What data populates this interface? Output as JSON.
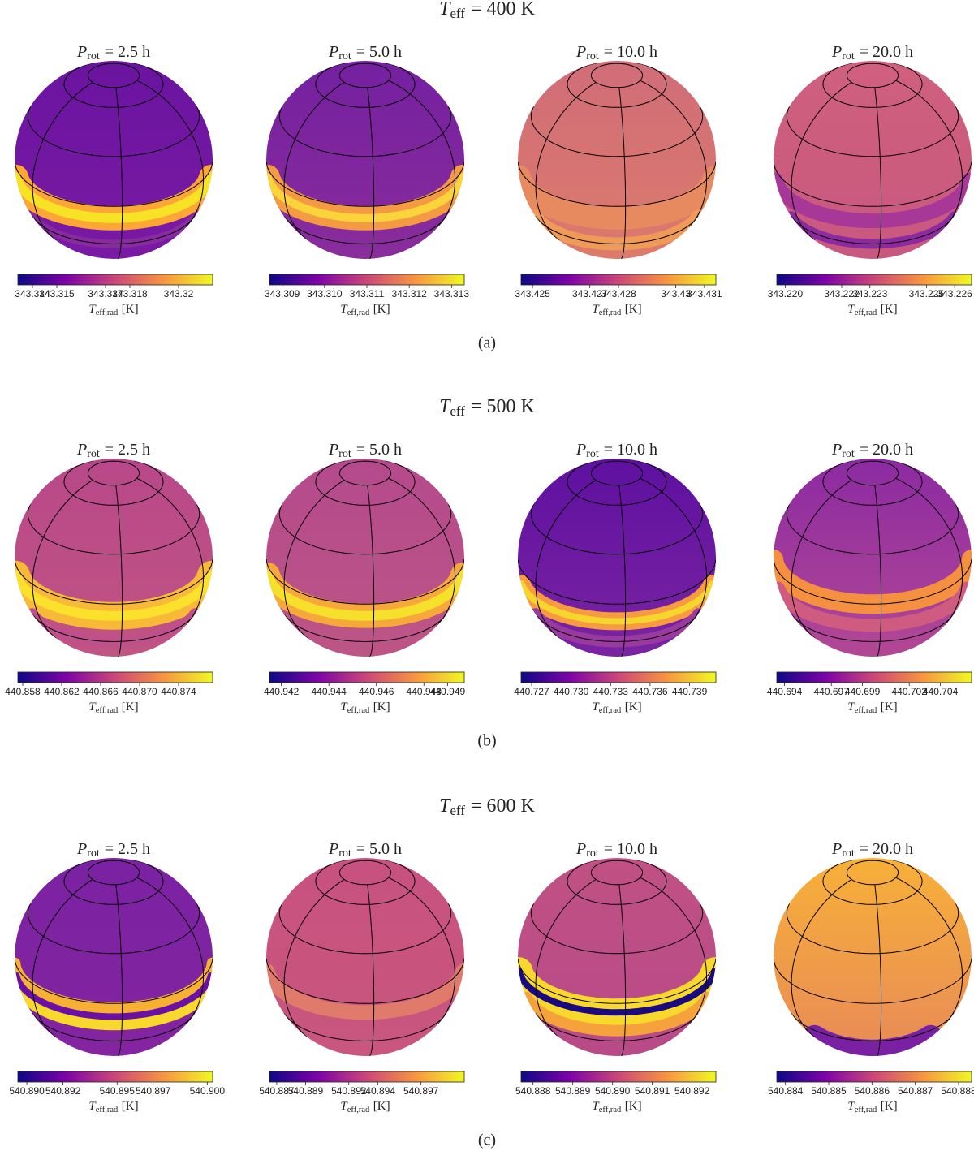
{
  "rows": [
    {
      "title": {
        "symbol": "T",
        "sub": "eff",
        "rest": "= 400 K"
      },
      "label": "(a)",
      "panels": [
        {
          "title": {
            "symbol": "P",
            "sub": "rot",
            "rest": "= 2.5 h"
          },
          "colorbar": {
            "lim": [
              343.3134,
              343.3214
            ],
            "ticks": [
              343.314,
              343.315,
              343.317,
              343.318,
              343.32
            ],
            "label": {
              "symbol": "T",
              "sub": "eff,rad",
              "rest": "[K]"
            }
          }
        },
        {
          "title": {
            "symbol": "P",
            "sub": "rot",
            "rest": "= 5.0 h"
          },
          "colorbar": {
            "lim": [
              343.3087,
              343.3133
            ],
            "ticks": [
              343.309,
              {
                "value": 343.31,
                "label": "343.310"
              },
              343.311,
              343.312,
              343.313
            ],
            "label": {
              "symbol": "T",
              "sub": "eff,rad",
              "rest": "[K]"
            }
          }
        },
        {
          "title": {
            "symbol": "P",
            "sub": "rot",
            "rest": "= 10.0 h"
          },
          "colorbar": {
            "lim": [
              343.4246,
              343.4314
            ],
            "ticks": [
              343.425,
              343.427,
              343.428,
              343.43,
              343.431
            ],
            "label": {
              "symbol": "T",
              "sub": "eff,rad",
              "rest": "[K]"
            }
          }
        },
        {
          "title": {
            "symbol": "P",
            "sub": "rot",
            "rest": "= 20.0 h"
          },
          "colorbar": {
            "lim": [
              343.2197,
              343.2266
            ],
            "ticks": [
              {
                "value": 343.22,
                "label": "343.220"
              },
              343.222,
              343.223,
              343.225,
              343.226
            ],
            "label": {
              "symbol": "T",
              "sub": "eff,rad",
              "rest": "[K]"
            }
          }
        }
      ]
    },
    {
      "title": {
        "symbol": "T",
        "sub": "eff",
        "rest": "= 500 K"
      },
      "label": "(b)",
      "panels": [
        {
          "title": {
            "symbol": "P",
            "sub": "rot",
            "rest": "= 2.5 h"
          },
          "colorbar": {
            "lim": [
              440.8575,
              440.8775
            ],
            "ticks": [
              440.858,
              440.862,
              440.866,
              {
                "value": 440.87,
                "label": "440.870"
              },
              440.874
            ],
            "label": {
              "symbol": "T",
              "sub": "eff,rad",
              "rest": "[K]"
            }
          }
        },
        {
          "title": {
            "symbol": "P",
            "sub": "rot",
            "rest": "= 5.0 h"
          },
          "colorbar": {
            "lim": [
              440.9415,
              440.9497
            ],
            "ticks": [
              440.942,
              440.944,
              440.946,
              440.948,
              440.949
            ],
            "label": {
              "symbol": "T",
              "sub": "eff,rad",
              "rest": "[K]"
            }
          }
        },
        {
          "title": {
            "symbol": "P",
            "sub": "rot",
            "rest": "= 10.0 h"
          },
          "colorbar": {
            "lim": [
              440.7262,
              440.741
            ],
            "ticks": [
              440.727,
              {
                "value": 440.73,
                "label": "440.730"
              },
              440.733,
              440.736,
              440.739
            ],
            "label": {
              "symbol": "T",
              "sub": "eff,rad",
              "rest": "[K]"
            }
          }
        },
        {
          "title": {
            "symbol": "P",
            "sub": "rot",
            "rest": "= 20.0 h"
          },
          "colorbar": {
            "lim": [
              440.6935,
              440.706
            ],
            "ticks": [
              440.694,
              440.697,
              440.699,
              440.702,
              440.704
            ],
            "label": {
              "symbol": "T",
              "sub": "eff,rad",
              "rest": "[K]"
            }
          }
        }
      ]
    },
    {
      "title": {
        "symbol": "T",
        "sub": "eff",
        "rest": "= 600 K"
      },
      "label": "(c)",
      "panels": [
        {
          "title": {
            "symbol": "P",
            "sub": "rot",
            "rest": "= 2.5 h"
          },
          "colorbar": {
            "lim": [
              540.8895,
              540.9003
            ],
            "ticks": [
              {
                "value": 540.89,
                "label": "540.890"
              },
              540.892,
              540.895,
              540.897,
              {
                "value": 540.9,
                "label": "540.900"
              }
            ],
            "label": {
              "symbol": "T",
              "sub": "eff,rad",
              "rest": "[K]"
            }
          }
        },
        {
          "title": {
            "symbol": "P",
            "sub": "rot",
            "rest": "= 5.0 h"
          },
          "colorbar": {
            "lim": [
              540.8865,
              540.9
            ],
            "ticks": [
              540.887,
              540.889,
              540.892,
              540.894,
              540.897
            ],
            "label": {
              "symbol": "T",
              "sub": "eff,rad",
              "rest": "[K]"
            }
          }
        },
        {
          "title": {
            "symbol": "P",
            "sub": "rot",
            "rest": "= 10.0 h"
          },
          "colorbar": {
            "lim": [
              540.8877,
              540.8926
            ],
            "ticks": [
              540.888,
              540.889,
              {
                "value": 540.89,
                "label": "540.890"
              },
              540.891,
              540.892
            ],
            "label": {
              "symbol": "T",
              "sub": "eff,rad",
              "rest": "[K]"
            }
          }
        },
        {
          "title": {
            "symbol": "P",
            "sub": "rot",
            "rest": "= 20.0 h"
          },
          "colorbar": {
            "lim": [
              540.8838,
              540.8883
            ],
            "ticks": [
              540.884,
              540.885,
              540.886,
              540.887,
              540.888
            ],
            "label": {
              "symbol": "T",
              "sub": "eff,rad",
              "rest": "[K]"
            }
          }
        }
      ]
    }
  ]
}
